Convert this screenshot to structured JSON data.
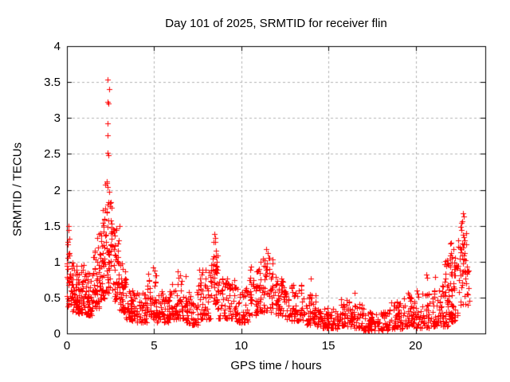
{
  "chart_data": {
    "type": "scatter",
    "title": "Day 101 of 2025, SRMTID for receiver flin",
    "xlabel": "GPS time / hours",
    "ylabel": "SRMTID / TECUs",
    "xlim": [
      0,
      24
    ],
    "ylim": [
      0,
      4
    ],
    "x_tick_values": [
      0,
      5,
      10,
      15,
      20
    ],
    "x_tick_labels": [
      "0",
      "5",
      "10",
      "15",
      "20"
    ],
    "y_tick_values": [
      0,
      0.5,
      1,
      1.5,
      2,
      2.5,
      3,
      3.5,
      4
    ],
    "y_tick_labels": [
      "0",
      "0.5",
      "1",
      "1.5",
      "2",
      "2.5",
      "3",
      "3.5",
      "4"
    ],
    "grid": true,
    "legend": "none",
    "series_name": "SRMTID",
    "marker": {
      "shape": "plus",
      "color": "#ff0000",
      "size": 7
    },
    "frame_color": "#000000",
    "grid_color": "#b4b4b4",
    "background": "#ffffff",
    "seed": 20250411,
    "bin_format": "[hour_start, hour_end, n_points, y_min, y_max, low_bias_exponent]",
    "cluster_bins": [
      [
        0.0,
        0.15,
        22,
        0.35,
        1.3,
        1.2
      ],
      [
        0.15,
        0.5,
        38,
        0.3,
        1.0,
        1.6
      ],
      [
        0.5,
        1.0,
        58,
        0.28,
        0.95,
        1.6
      ],
      [
        1.0,
        1.5,
        52,
        0.25,
        0.85,
        1.5
      ],
      [
        1.5,
        1.9,
        45,
        0.35,
        1.25,
        1.5
      ],
      [
        1.9,
        2.2,
        40,
        0.45,
        1.6,
        1.4
      ],
      [
        2.2,
        2.6,
        55,
        0.55,
        2.1,
        1.3
      ],
      [
        2.6,
        3.0,
        45,
        0.45,
        1.5,
        1.5
      ],
      [
        3.0,
        3.4,
        40,
        0.3,
        1.0,
        1.6
      ],
      [
        3.4,
        4.0,
        50,
        0.18,
        0.62,
        1.5
      ],
      [
        4.0,
        4.6,
        45,
        0.15,
        0.6,
        1.6
      ],
      [
        4.6,
        5.15,
        42,
        0.2,
        0.85,
        1.7
      ],
      [
        5.15,
        6.0,
        60,
        0.15,
        0.6,
        1.7
      ],
      [
        6.0,
        6.6,
        45,
        0.2,
        0.82,
        1.7
      ],
      [
        6.6,
        7.5,
        60,
        0.12,
        0.58,
        1.6
      ],
      [
        7.5,
        8.25,
        55,
        0.2,
        0.9,
        1.6
      ],
      [
        8.25,
        8.65,
        40,
        0.4,
        1.38,
        1.2
      ],
      [
        8.65,
        9.6,
        60,
        0.2,
        0.8,
        1.6
      ],
      [
        9.6,
        10.4,
        55,
        0.15,
        0.65,
        1.6
      ],
      [
        10.4,
        11.0,
        45,
        0.25,
        0.9,
        1.5
      ],
      [
        11.0,
        11.8,
        60,
        0.3,
        1.1,
        1.4
      ],
      [
        11.8,
        12.5,
        50,
        0.25,
        0.85,
        1.5
      ],
      [
        12.5,
        13.5,
        65,
        0.18,
        0.68,
        1.6
      ],
      [
        13.5,
        14.3,
        50,
        0.12,
        0.55,
        1.6
      ],
      [
        14.3,
        15.5,
        70,
        0.07,
        0.35,
        1.5
      ],
      [
        15.5,
        16.2,
        45,
        0.1,
        0.5,
        1.6
      ],
      [
        16.2,
        17.0,
        50,
        0.07,
        0.42,
        1.6
      ],
      [
        17.0,
        18.5,
        85,
        0.04,
        0.3,
        1.4
      ],
      [
        18.5,
        19.3,
        50,
        0.07,
        0.45,
        1.5
      ],
      [
        19.3,
        20.0,
        45,
        0.1,
        0.55,
        1.5
      ],
      [
        20.0,
        20.8,
        50,
        0.08,
        0.6,
        1.5
      ],
      [
        20.8,
        21.5,
        45,
        0.1,
        0.6,
        1.5
      ],
      [
        21.5,
        22.0,
        50,
        0.1,
        1.05,
        1.5
      ],
      [
        22.0,
        22.45,
        50,
        0.15,
        1.3,
        1.4
      ],
      [
        22.45,
        22.95,
        45,
        0.4,
        1.55,
        1.1
      ],
      [
        22.95,
        23.1,
        8,
        0.4,
        0.9,
        1.3
      ]
    ],
    "outlier_points": [
      [
        2.33,
        3.53
      ],
      [
        2.42,
        3.4
      ],
      [
        2.33,
        3.22
      ],
      [
        2.36,
        3.2
      ],
      [
        2.34,
        2.92
      ],
      [
        2.32,
        2.76
      ],
      [
        2.35,
        2.52
      ],
      [
        2.38,
        2.48
      ],
      [
        2.3,
        2.12
      ],
      [
        2.4,
        1.97
      ],
      [
        2.05,
        1.72
      ],
      [
        0.1,
        1.5
      ],
      [
        0.07,
        1.44
      ],
      [
        0.12,
        1.32
      ],
      [
        1.75,
        1.33
      ],
      [
        1.85,
        1.38
      ],
      [
        8.45,
        1.39
      ],
      [
        8.48,
        1.33
      ],
      [
        8.42,
        1.27
      ],
      [
        11.45,
        1.17
      ],
      [
        11.5,
        1.12
      ],
      [
        11.55,
        1.05
      ],
      [
        22.7,
        1.67
      ],
      [
        22.75,
        1.63
      ],
      [
        22.66,
        1.56
      ],
      [
        22.6,
        1.48
      ],
      [
        4.95,
        0.92
      ],
      [
        5.02,
        0.88
      ],
      [
        6.35,
        0.86
      ],
      [
        6.8,
        0.8
      ],
      [
        10.55,
        0.93
      ],
      [
        14.0,
        0.76
      ],
      [
        16.5,
        0.56
      ],
      [
        18.62,
        0.43
      ],
      [
        19.55,
        0.57
      ],
      [
        20.6,
        0.82
      ],
      [
        20.66,
        0.78
      ],
      [
        21.1,
        0.79
      ]
    ]
  }
}
